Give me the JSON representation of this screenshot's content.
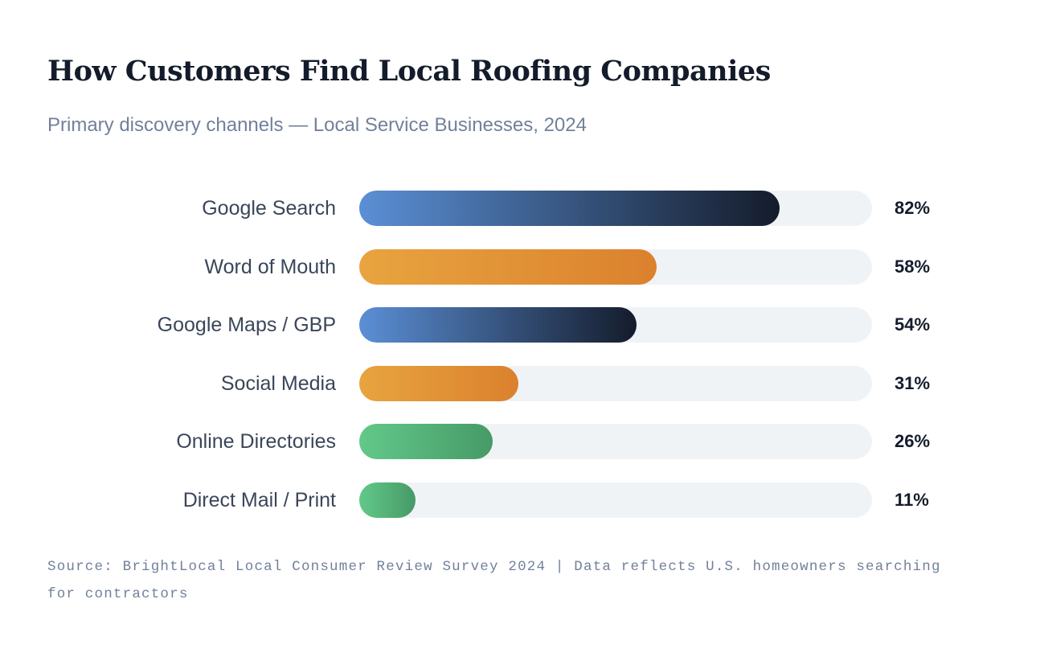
{
  "chart_data": {
    "type": "bar",
    "orientation": "horizontal",
    "title": "How Customers Find Local Roofing Companies",
    "subtitle": "Primary discovery channels — Local Service Businesses, 2024",
    "categories": [
      "Google Search",
      "Word of Mouth",
      "Google Maps / GBP",
      "Social Media",
      "Online Directories",
      "Direct Mail / Print"
    ],
    "values": [
      82,
      58,
      54,
      31,
      26,
      11
    ],
    "value_labels": [
      "82%",
      "58%",
      "54%",
      "31%",
      "26%",
      "11%"
    ],
    "xlim": [
      0,
      100
    ],
    "unit": "%",
    "grid": false,
    "bar_colors": [
      [
        "#5b8fd6",
        "#141c2b"
      ],
      [
        "#e8a43f",
        "#db812e"
      ],
      [
        "#5b8fd6",
        "#141c2b"
      ],
      [
        "#e8a43f",
        "#db812e"
      ],
      [
        "#62c98a",
        "#469a66"
      ],
      [
        "#62c98a",
        "#469a66"
      ]
    ],
    "track_color": "#f0f3f6",
    "footer": "Source: BrightLocal Local Consumer Review Survey 2024 | Data reflects U.S. homeowners searching for contractors"
  }
}
